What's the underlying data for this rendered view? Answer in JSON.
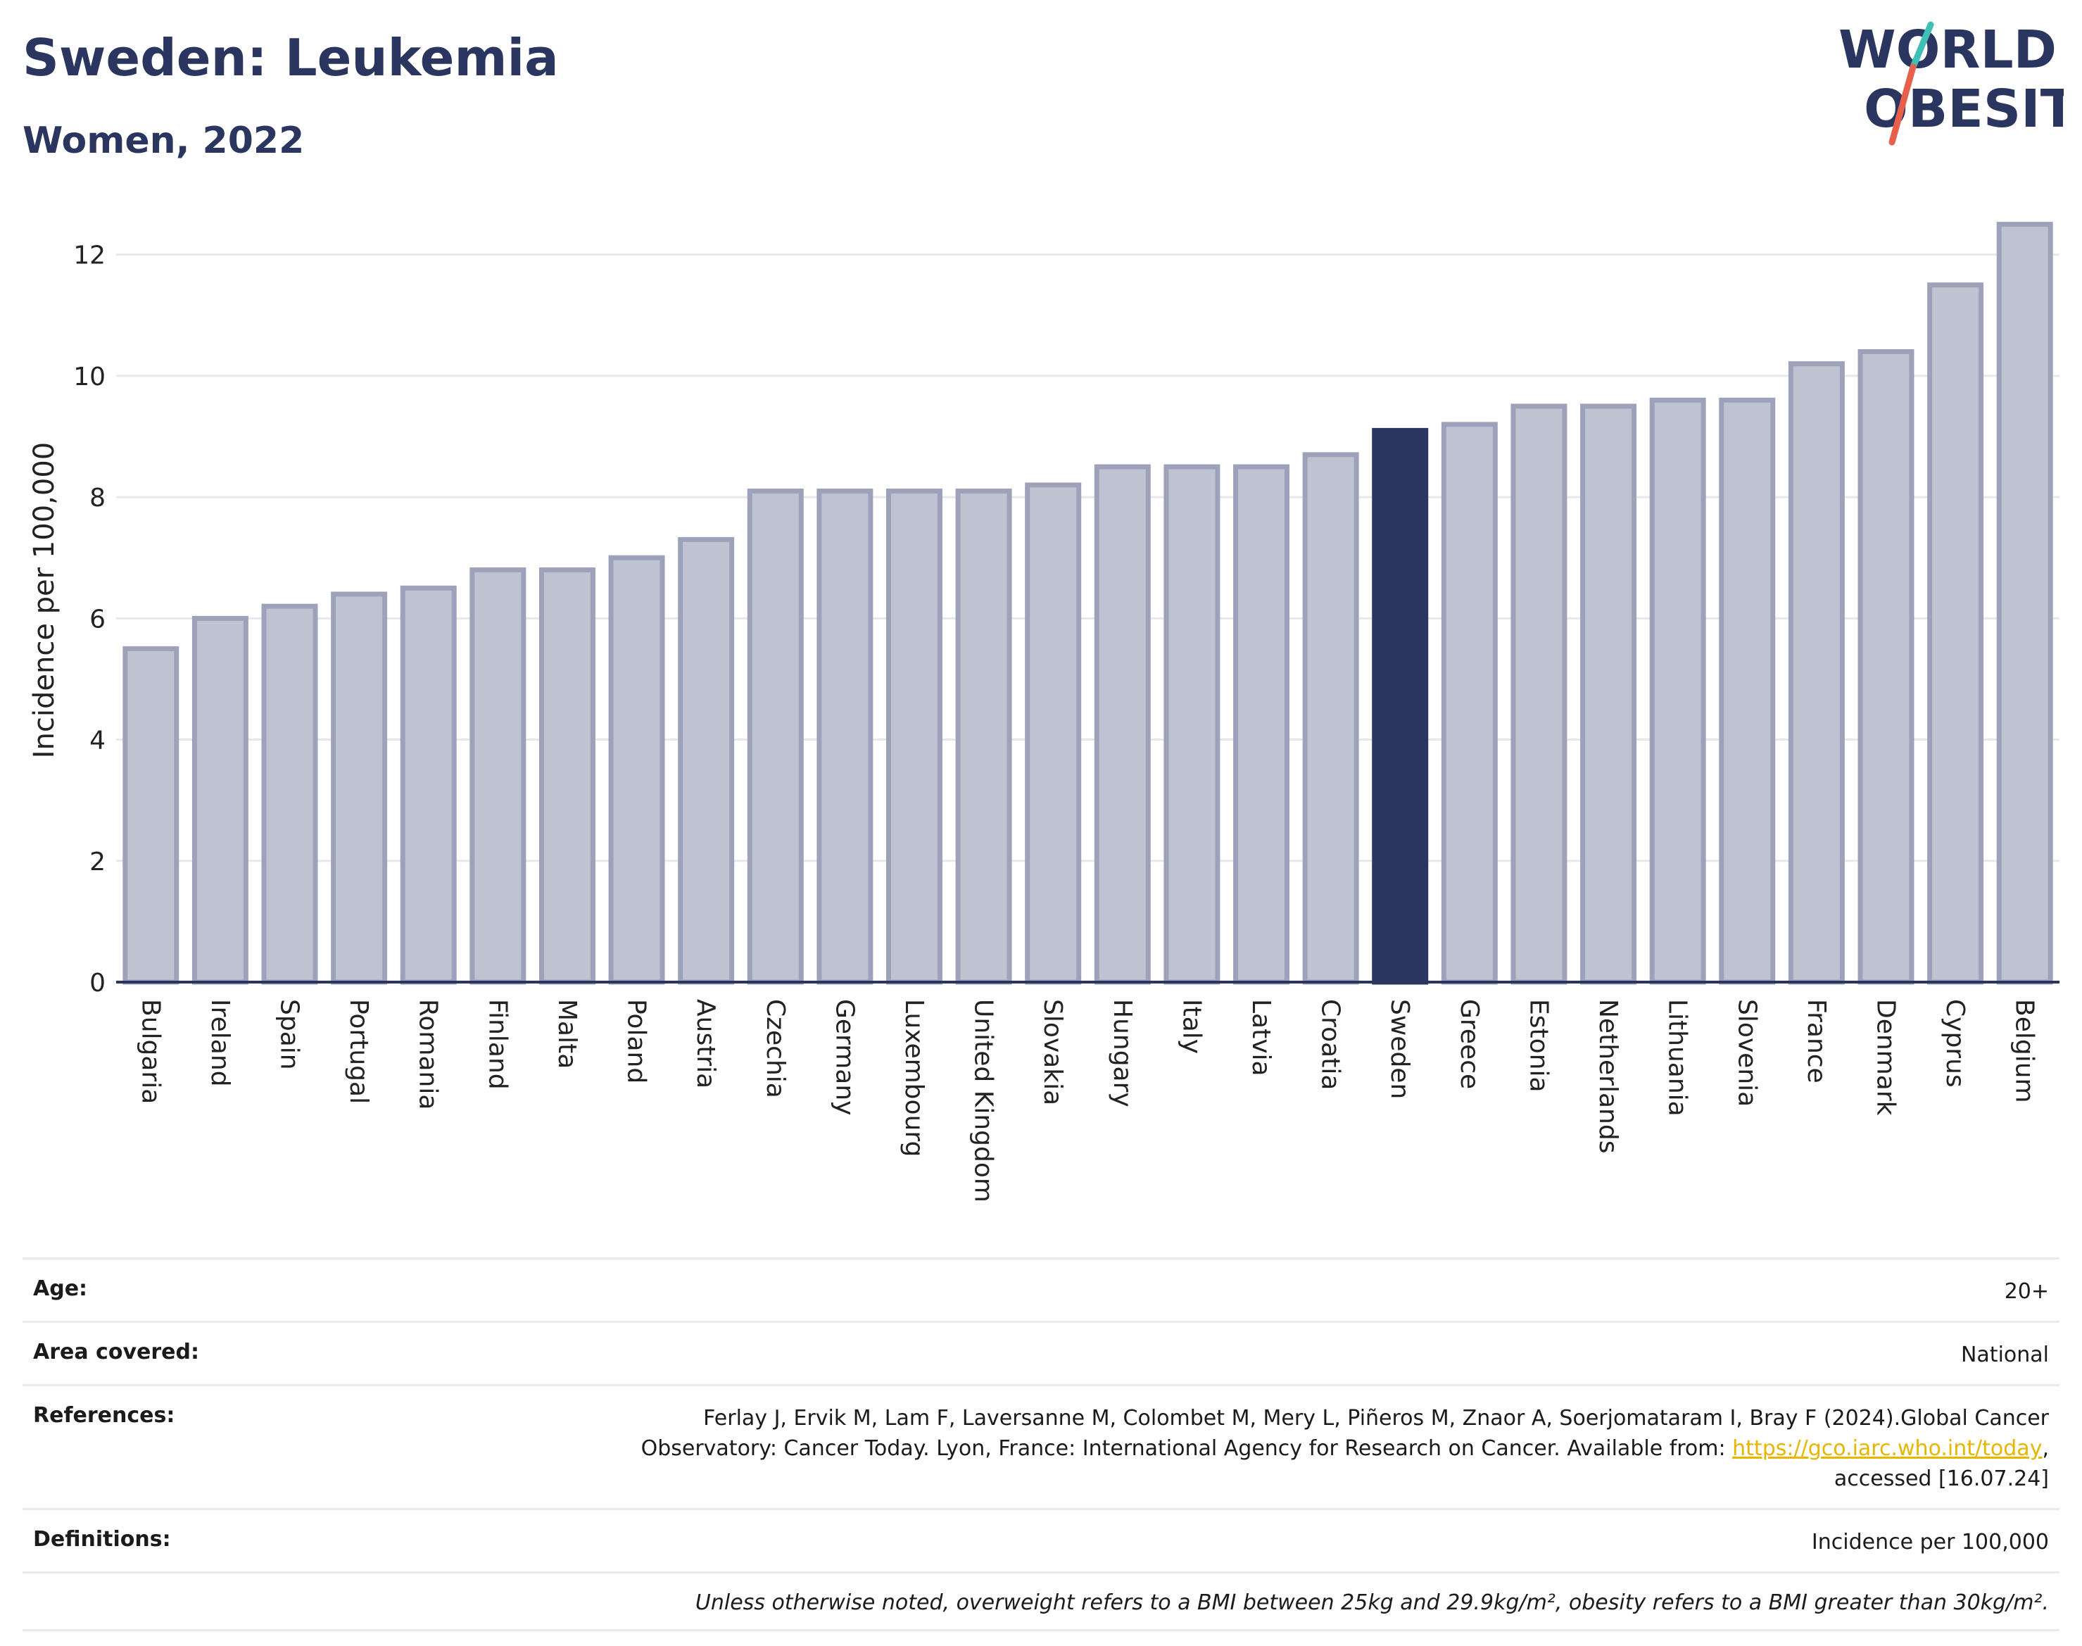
{
  "header": {
    "title": "Sweden: Leukemia",
    "subtitle": "Women, 2022"
  },
  "logo": {
    "line1": "WORLD",
    "line2": "OBESITY",
    "accent_colors": [
      "#3fbfb5",
      "#e8604c"
    ]
  },
  "colors": {
    "highlight": "#2a3660",
    "bar_fill": "#bfc2d0",
    "bar_stroke": "#9da2ba",
    "title": "#2a3660",
    "link": "#e8b500"
  },
  "chart_data": {
    "type": "bar",
    "ylabel": "Incidence per 100,000",
    "ylim": [
      0,
      12.6
    ],
    "yticks": [
      0,
      2,
      4,
      6,
      8,
      10,
      12
    ],
    "grid": true,
    "highlight": "Sweden",
    "categories": [
      "Bulgaria",
      "Ireland",
      "Spain",
      "Portugal",
      "Romania",
      "Finland",
      "Malta",
      "Poland",
      "Austria",
      "Czechia",
      "Germany",
      "Luxembourg",
      "United Kingdom",
      "Slovakia",
      "Hungary",
      "Italy",
      "Latvia",
      "Croatia",
      "Sweden",
      "Greece",
      "Estonia",
      "Netherlands",
      "Lithuania",
      "Slovenia",
      "France",
      "Denmark",
      "Cyprus",
      "Belgium"
    ],
    "values": [
      5.5,
      6.0,
      6.2,
      6.4,
      6.5,
      6.8,
      6.8,
      7.0,
      7.3,
      8.1,
      8.1,
      8.1,
      8.1,
      8.2,
      8.5,
      8.5,
      8.5,
      8.7,
      9.1,
      9.2,
      9.5,
      9.5,
      9.6,
      9.6,
      10.2,
      10.4,
      11.5,
      12.5
    ]
  },
  "info": {
    "age_label": "Age:",
    "age_value": "20+",
    "area_label": "Area covered:",
    "area_value": "National",
    "references_label": "References:",
    "references_text": "Ferlay J, Ervik M, Lam F, Laversanne M, Colombet M, Mery L, Piñeros M, Znaor A, Soerjomataram I, Bray F (2024).Global Cancer Observatory: Cancer Today. Lyon, France: International Agency for Research on Cancer. Available from: ",
    "references_link": "https://gco.iarc.who.int/today",
    "references_suffix": ", accessed [16.07.24]",
    "definitions_label": "Definitions:",
    "definitions_value": "Incidence per 100,000",
    "note": "Unless otherwise noted, overweight refers to a BMI between 25kg and 29.9kg/m², obesity refers to a BMI greater than 30kg/m²."
  }
}
